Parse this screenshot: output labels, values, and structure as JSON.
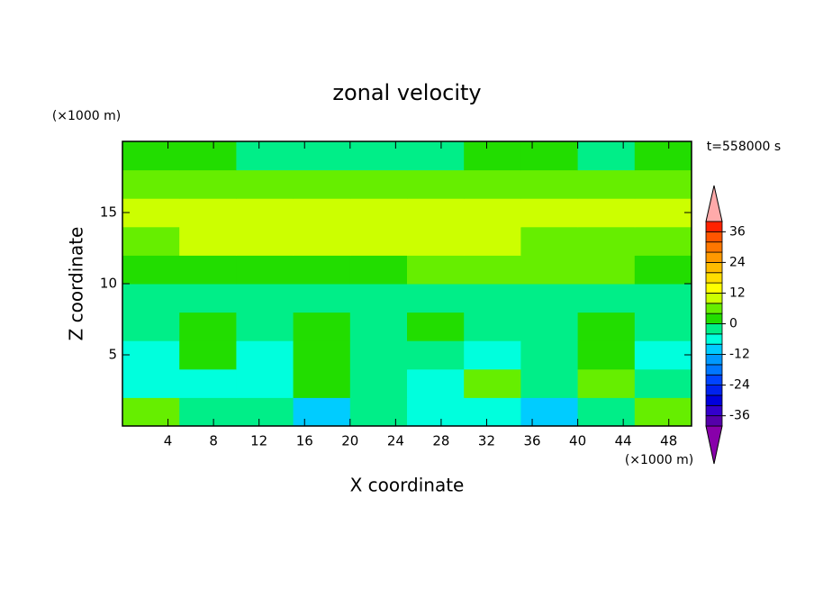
{
  "chart_data": {
    "type": "contour",
    "title": "zonal velocity",
    "x_label": "X coordinate",
    "y_label": "Z coordinate",
    "x_unit": "(×1000 m)",
    "y_unit": "(×1000 m)",
    "time_label": "t=558000 s",
    "xlim": [
      0,
      50
    ],
    "xticks": [
      4,
      8,
      12,
      16,
      20,
      24,
      28,
      32,
      36,
      40,
      44,
      48
    ],
    "ylim": [
      0,
      20
    ],
    "yticks": [
      5,
      10,
      15
    ],
    "x": [
      2.5,
      7.5,
      12.5,
      17.5,
      22.5,
      27.5,
      32.5,
      37.5,
      42.5,
      47.5
    ],
    "z": [
      1,
      3,
      5,
      7,
      9,
      11,
      13,
      15,
      17,
      19
    ],
    "values": [
      [
        6,
        -2,
        -2,
        -10,
        -2,
        -6,
        -6,
        -10,
        -2,
        6
      ],
      [
        -6,
        -6,
        -6,
        2,
        -2,
        -6,
        6,
        -2,
        6,
        -2
      ],
      [
        -6,
        2,
        -6,
        2,
        -2,
        -2,
        -6,
        -2,
        2,
        -6
      ],
      [
        -2,
        2,
        -2,
        2,
        -2,
        2,
        -2,
        -2,
        2,
        -2
      ],
      [
        -2,
        -2,
        -2,
        -2,
        -2,
        -2,
        -2,
        -2,
        -2,
        -2
      ],
      [
        2,
        2,
        2,
        2,
        2,
        6,
        6,
        6,
        6,
        2
      ],
      [
        6,
        10,
        10,
        10,
        10,
        10,
        10,
        6,
        6,
        6
      ],
      [
        10,
        10,
        10,
        10,
        10,
        10,
        10,
        10,
        10,
        10
      ],
      [
        6,
        6,
        6,
        6,
        6,
        6,
        6,
        6,
        6,
        6
      ],
      [
        2,
        2,
        -2,
        -2,
        -2,
        -2,
        0,
        0,
        -2,
        2
      ]
    ],
    "levels": [
      -40,
      -36,
      -32,
      -28,
      -24,
      -20,
      -16,
      -12,
      -8,
      -4,
      0,
      4,
      8,
      12,
      16,
      20,
      24,
      28,
      32,
      36,
      40
    ],
    "colors": [
      "#8800aa",
      "#5500aa",
      "#3300cc",
      "#0000dd",
      "#0022ee",
      "#0044ff",
      "#0077ff",
      "#0099ff",
      "#00ccff",
      "#00ffdd",
      "#00ee88",
      "#22dd00",
      "#66ee00",
      "#ccff00",
      "#ffff00",
      "#ffdd00",
      "#ffbb00",
      "#ff9900",
      "#ff7700",
      "#ff5500",
      "#ff2200",
      "#ffaaaa"
    ],
    "colorbar_ticks": [
      -36,
      -24,
      -12,
      0,
      12,
      24,
      36
    ]
  }
}
